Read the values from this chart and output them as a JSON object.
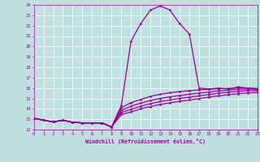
{
  "xlabel": "Windchill (Refroidissement éolien,°C)",
  "background_color": "#c0e0e0",
  "line_color": "#990099",
  "grid_color": "#ffffff",
  "xlim": [
    0,
    23
  ],
  "ylim": [
    12,
    24
  ],
  "xticks": [
    0,
    1,
    2,
    3,
    4,
    5,
    6,
    7,
    8,
    9,
    10,
    11,
    12,
    13,
    14,
    15,
    16,
    17,
    18,
    19,
    20,
    21,
    22,
    23
  ],
  "yticks": [
    12,
    13,
    14,
    15,
    16,
    17,
    18,
    19,
    20,
    21,
    22,
    23,
    24
  ],
  "series": [
    [
      13.1,
      12.9,
      12.75,
      12.9,
      12.7,
      12.65,
      12.65,
      12.65,
      12.25,
      14.3,
      20.5,
      22.2,
      23.5,
      23.9,
      23.5,
      22.2,
      21.2,
      16.0,
      15.9,
      16.0,
      15.9,
      16.1,
      16.0,
      15.9
    ],
    [
      13.1,
      12.9,
      12.75,
      12.9,
      12.7,
      12.65,
      12.65,
      12.65,
      12.25,
      14.1,
      14.6,
      14.9,
      15.2,
      15.4,
      15.55,
      15.65,
      15.75,
      15.82,
      15.88,
      15.93,
      15.95,
      16.0,
      16.0,
      15.95
    ],
    [
      13.1,
      12.9,
      12.75,
      12.9,
      12.7,
      12.65,
      12.65,
      12.65,
      12.25,
      13.85,
      14.25,
      14.55,
      14.8,
      15.0,
      15.15,
      15.28,
      15.4,
      15.52,
      15.62,
      15.72,
      15.8,
      15.87,
      15.9,
      15.88
    ],
    [
      13.1,
      12.9,
      12.75,
      12.9,
      12.7,
      12.65,
      12.65,
      12.65,
      12.25,
      13.65,
      13.95,
      14.25,
      14.5,
      14.7,
      14.85,
      15.0,
      15.12,
      15.25,
      15.38,
      15.5,
      15.6,
      15.68,
      15.75,
      15.75
    ],
    [
      13.1,
      12.9,
      12.75,
      12.9,
      12.7,
      12.65,
      12.65,
      12.65,
      12.25,
      13.45,
      13.7,
      14.0,
      14.22,
      14.42,
      14.58,
      14.72,
      14.85,
      14.98,
      15.12,
      15.25,
      15.36,
      15.45,
      15.53,
      15.58
    ]
  ]
}
